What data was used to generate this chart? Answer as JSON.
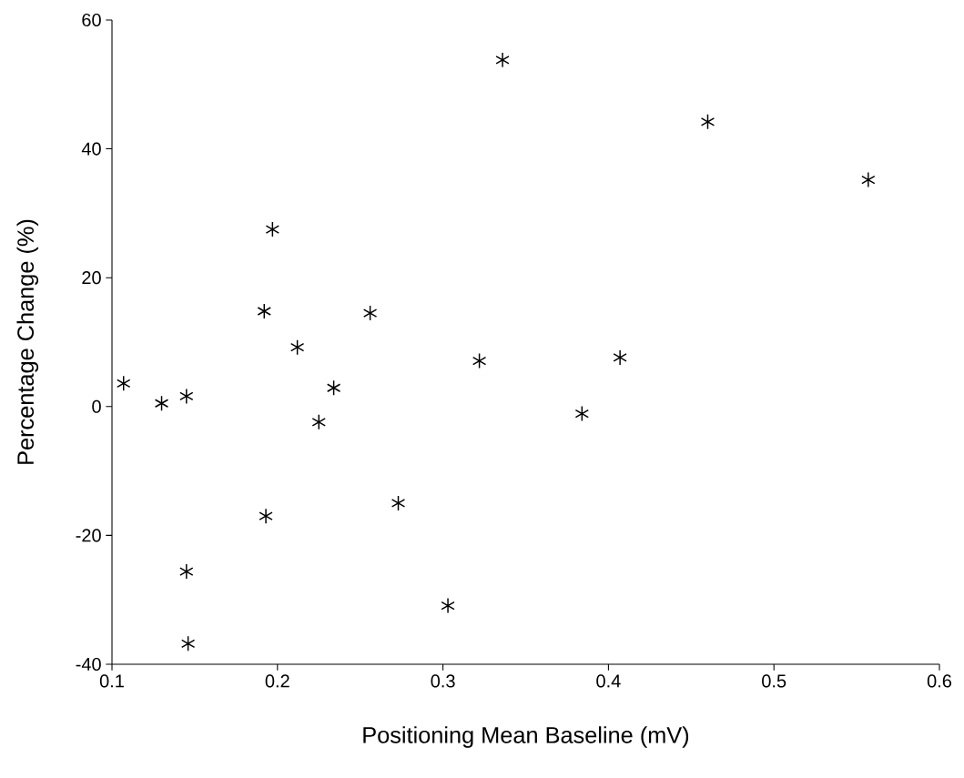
{
  "chart_data": {
    "type": "scatter",
    "xlabel": "Positioning Mean Baseline (mV)",
    "ylabel": "Percentage Change (%)",
    "x": [
      0.107,
      0.13,
      0.145,
      0.145,
      0.146,
      0.192,
      0.193,
      0.197,
      0.212,
      0.225,
      0.234,
      0.256,
      0.273,
      0.303,
      0.322,
      0.336,
      0.384,
      0.407,
      0.46,
      0.557
    ],
    "series": [
      {
        "color": "#000000",
        "values": [
          3.6,
          0.5,
          1.6,
          -25.6,
          -36.8,
          14.8,
          -17.0,
          27.5,
          9.2,
          -2.4,
          2.9,
          14.5,
          -15.0,
          -30.9,
          7.1,
          53.8,
          -1.1,
          7.6,
          44.2,
          35.2
        ]
      }
    ],
    "xlim": [
      0.1,
      0.6
    ],
    "ylim": [
      -40,
      60
    ],
    "xticks": [
      0.1,
      0.2,
      0.3,
      0.4,
      0.5,
      0.6
    ],
    "yticks": [
      -40,
      -20,
      0,
      20,
      40,
      60
    ],
    "marker": "cross"
  }
}
